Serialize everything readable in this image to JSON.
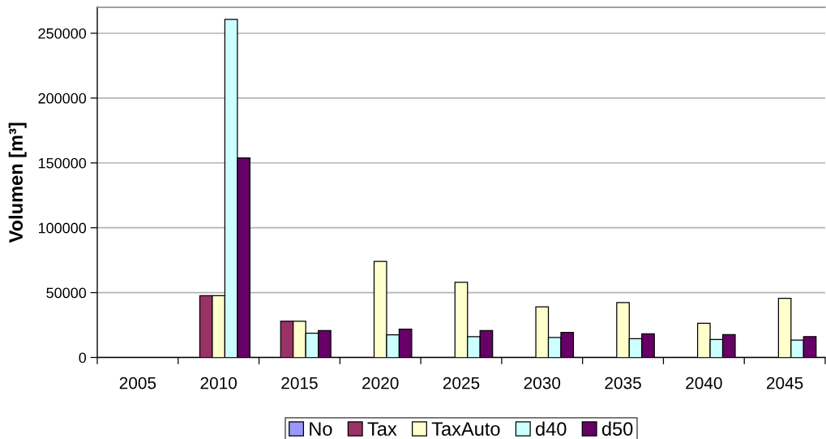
{
  "chart_data": {
    "type": "bar",
    "ylabel": "Volumen [m³]",
    "categories": [
      "2005",
      "2010",
      "2015",
      "2020",
      "2025",
      "2030",
      "2035",
      "2040",
      "2045"
    ],
    "series": [
      {
        "name": "No",
        "color": "#9999ff",
        "values": [
          null,
          null,
          null,
          null,
          null,
          null,
          null,
          null,
          null
        ]
      },
      {
        "name": "Tax",
        "color": "#993366",
        "values": [
          null,
          47700,
          28000,
          null,
          null,
          null,
          null,
          null,
          null
        ]
      },
      {
        "name": "TaxAuto",
        "color": "#ffffcc",
        "values": [
          null,
          47700,
          28000,
          74000,
          57900,
          39100,
          42300,
          26300,
          45600
        ]
      },
      {
        "name": "d40",
        "color": "#ccffff",
        "values": [
          null,
          260700,
          18700,
          17400,
          16100,
          15400,
          14400,
          13900,
          13400
        ]
      },
      {
        "name": "d50",
        "color": "#660066",
        "values": [
          null,
          153900,
          20800,
          21800,
          20800,
          19300,
          18300,
          17600,
          16100
        ]
      }
    ],
    "ylim": [
      0,
      270000
    ],
    "yticks": [
      0,
      50000,
      100000,
      150000,
      200000,
      250000
    ],
    "grid": "y",
    "legend": "bottom"
  }
}
